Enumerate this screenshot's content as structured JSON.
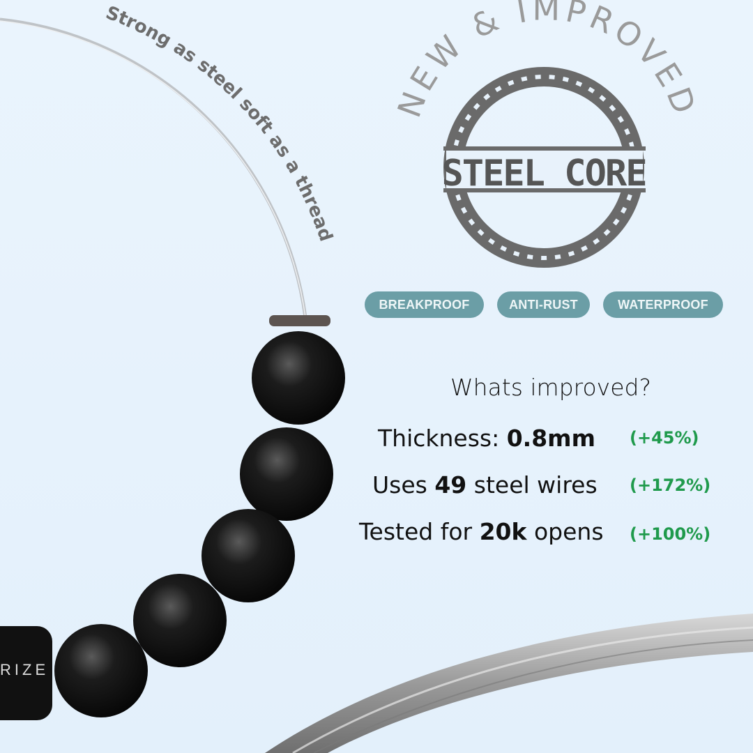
{
  "tagline": "Strong as steel soft as a thread",
  "badge": {
    "arc_text": "NEW & IMPROVED",
    "center_text": "STEEL CORE",
    "color": "#6a6a6a"
  },
  "features": [
    "BREAKPROOF",
    "ANTI-RUST",
    "WATERPROOF"
  ],
  "feature_color": "#6b9ea6",
  "improvements": {
    "title": "Whats improved?",
    "rows": [
      {
        "pre": "Thickness: ",
        "bold": "0.8mm",
        "post": "",
        "change": "(+45%)"
      },
      {
        "pre": "Uses ",
        "bold": "49",
        "post": " steel wires",
        "change": "(+172%)"
      },
      {
        "pre": "Tested for ",
        "bold": "20k",
        "post": " opens",
        "change": "(+100%)"
      }
    ],
    "change_color": "#1f9a4c"
  },
  "clasp_text": "RIZE"
}
